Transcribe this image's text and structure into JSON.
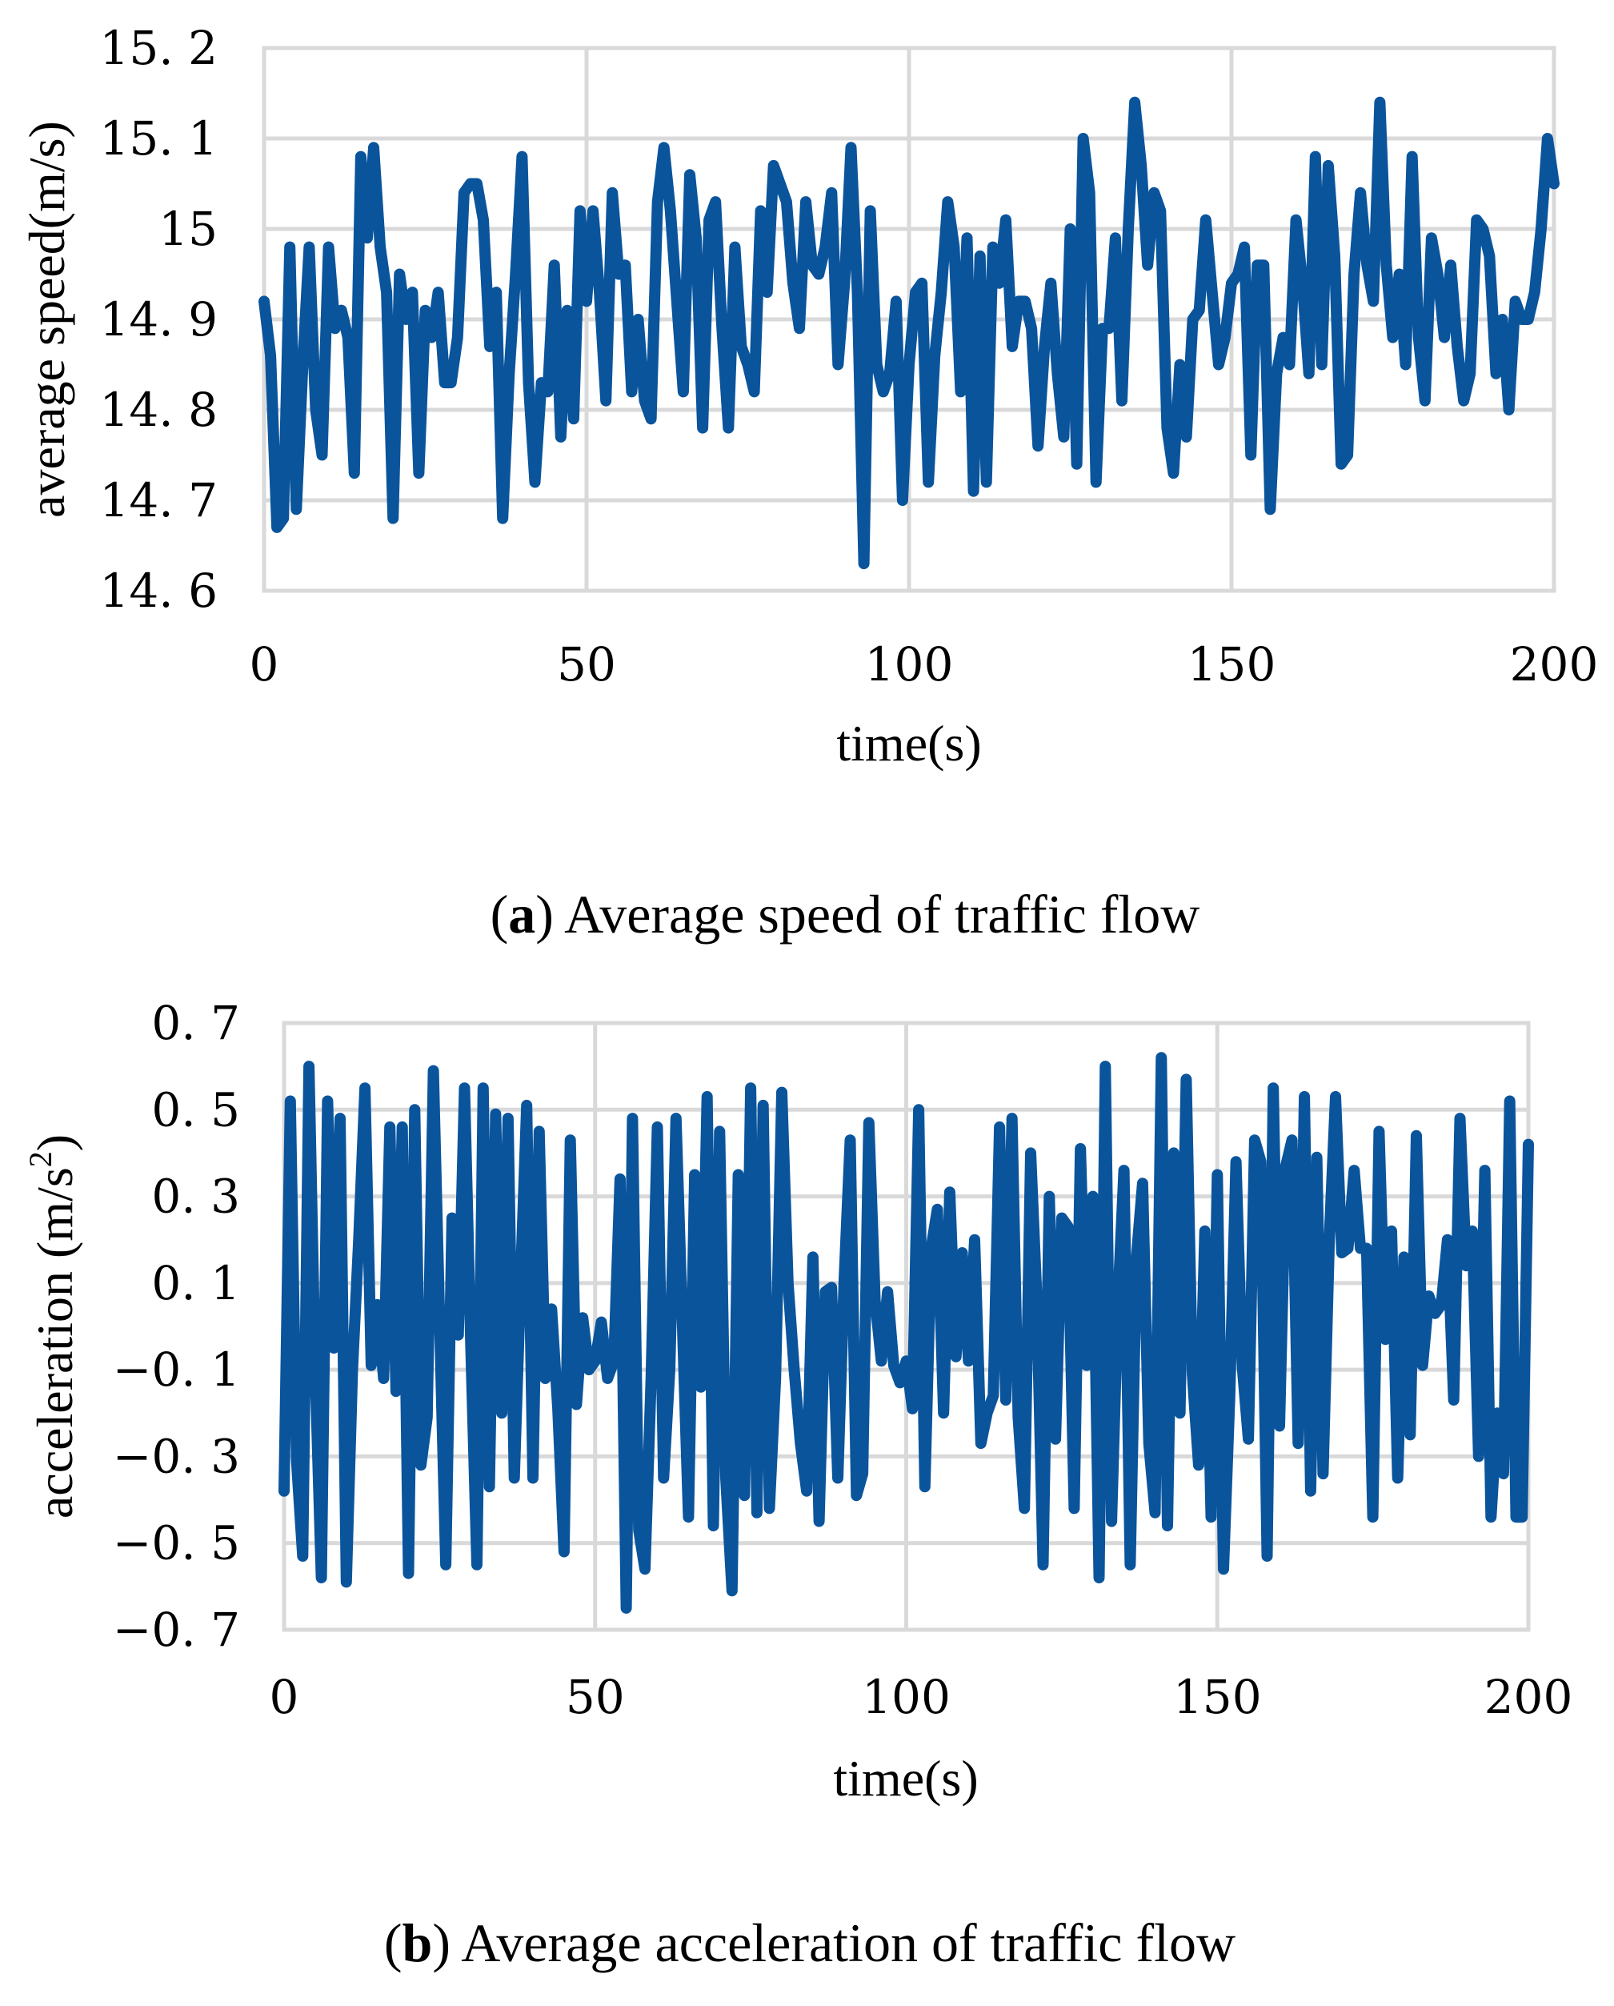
{
  "chart_data": [
    {
      "type": "line",
      "caption_letter": "a",
      "caption_open": "(",
      "caption_close": ")",
      "caption_text": " Average speed of traffic flow",
      "xlabel": "time(s)",
      "ylabel": "average speed(m/s)",
      "xlim": [
        0,
        200
      ],
      "ylim": [
        14.6,
        15.2
      ],
      "xticks": [
        0,
        50,
        100,
        150,
        200
      ],
      "xtick_labels": [
        "0",
        "50",
        "100",
        "150",
        "200"
      ],
      "yticks": [
        14.6,
        14.7,
        14.8,
        14.9,
        15.0,
        15.1,
        15.2
      ],
      "ytick_labels": [
        "14. 6",
        "14. 7",
        "14. 8",
        "14. 9",
        "15",
        "15. 1",
        "15. 2"
      ],
      "grid": true,
      "line_color": "#0a549c",
      "series": [
        {
          "x": [
            0,
            1,
            2,
            3,
            4,
            5,
            6,
            7,
            8,
            9,
            10,
            11,
            12,
            13,
            14,
            15,
            16,
            17,
            18,
            19,
            20,
            21,
            22,
            23,
            24,
            25,
            26,
            27,
            28,
            29,
            30,
            31,
            32,
            33,
            34,
            35,
            36,
            37,
            38,
            39,
            40,
            41,
            42,
            43,
            44,
            45,
            46,
            47,
            48,
            49,
            50,
            51,
            52,
            53,
            54,
            55,
            56,
            57,
            58,
            59,
            60,
            61,
            62,
            63,
            64,
            65,
            66,
            67,
            68,
            69,
            70,
            71,
            72,
            73,
            74,
            75,
            76,
            77,
            78,
            79,
            80,
            81,
            82,
            83,
            84,
            85,
            86,
            87,
            88,
            89,
            90,
            91,
            92,
            93,
            94,
            95,
            96,
            97,
            98,
            99,
            100,
            101,
            102,
            103,
            104,
            105,
            106,
            107,
            108,
            109,
            110,
            111,
            112,
            113,
            114,
            115,
            116,
            117,
            118,
            119,
            120,
            121,
            122,
            123,
            124,
            125,
            126,
            127,
            128,
            129,
            130,
            131,
            132,
            133,
            134,
            135,
            136,
            137,
            138,
            139,
            140,
            141,
            142,
            143,
            144,
            145,
            146,
            147,
            148,
            149,
            150,
            151,
            152,
            153,
            154,
            155,
            156,
            157,
            158,
            159,
            160,
            161,
            162,
            163,
            164,
            165,
            166,
            167,
            168,
            169,
            170,
            171,
            172,
            173,
            174,
            175,
            176,
            177,
            178,
            179,
            180,
            181,
            182,
            183,
            184,
            185,
            186,
            187,
            188,
            189,
            190,
            191,
            192,
            193,
            194,
            195,
            196,
            197,
            198,
            199,
            200
          ],
          "values": [
            14.92,
            14.86,
            14.67,
            14.68,
            14.98,
            14.69,
            14.85,
            14.98,
            14.8,
            14.75,
            14.98,
            14.89,
            14.91,
            14.88,
            14.73,
            15.08,
            14.99,
            15.09,
            14.98,
            14.93,
            14.68,
            14.95,
            14.9,
            14.93,
            14.73,
            14.91,
            14.88,
            14.93,
            14.83,
            14.83,
            14.88,
            15.04,
            15.05,
            15.05,
            15.01,
            14.87,
            14.93,
            14.68,
            14.84,
            14.95,
            15.08,
            14.83,
            14.72,
            14.83,
            14.82,
            14.96,
            14.77,
            14.91,
            14.79,
            15.02,
            14.92,
            15.02,
            14.93,
            14.81,
            15.04,
            14.95,
            14.96,
            14.82,
            14.9,
            14.81,
            14.79,
            15.03,
            15.09,
            15.02,
            14.92,
            14.82,
            15.06,
            14.99,
            14.78,
            15.01,
            15.03,
            14.89,
            14.78,
            14.98,
            14.87,
            14.85,
            14.82,
            15.02,
            14.93,
            15.07,
            15.05,
            15.03,
            14.94,
            14.89,
            15.03,
            14.96,
            14.95,
            14.98,
            15.04,
            14.85,
            14.94,
            15.09,
            14.93,
            14.63,
            15.02,
            14.85,
            14.82,
            14.84,
            14.92,
            14.7,
            14.85,
            14.93,
            14.94,
            14.72,
            14.86,
            14.93,
            15.03,
            14.98,
            14.82,
            14.99,
            14.71,
            14.97,
            14.72,
            14.98,
            14.94,
            15.01,
            14.87,
            14.92,
            14.92,
            14.89,
            14.76,
            14.87,
            14.94,
            14.84,
            14.77,
            15.0,
            14.74,
            15.1,
            15.04,
            14.72,
            14.89,
            14.89,
            14.99,
            14.81,
            15.0,
            15.14,
            15.07,
            14.96,
            15.04,
            15.02,
            14.78,
            14.73,
            14.85,
            14.77,
            14.9,
            14.91,
            15.01,
            14.93,
            14.85,
            14.88,
            14.94,
            14.95,
            14.98,
            14.75,
            14.96,
            14.96,
            14.69,
            14.84,
            14.88,
            14.85,
            15.01,
            14.94,
            14.84,
            15.08,
            14.85,
            15.07,
            14.97,
            14.74,
            14.75,
            14.95,
            15.04,
            14.96,
            14.92,
            15.14,
            14.96,
            14.88,
            14.95,
            14.85,
            15.08,
            14.88,
            14.81,
            14.99,
            14.95,
            14.88,
            14.96,
            14.87,
            14.81,
            14.84,
            15.01,
            15.0,
            14.97,
            14.84,
            14.9,
            14.8,
            14.92,
            14.9,
            14.9,
            14.93,
            15.0,
            15.1,
            15.05
          ]
        }
      ]
    },
    {
      "type": "line",
      "caption_letter": "b",
      "caption_open": "(",
      "caption_close": ")",
      "caption_text": " Average acceleration of traffic flow",
      "xlabel": "time(s)",
      "ylabel_main": "acceleration (m/s",
      "ylabel_sup": "2",
      "ylabel_end": ")",
      "xlim": [
        0,
        200
      ],
      "ylim": [
        -0.7,
        0.7
      ],
      "xticks": [
        0,
        50,
        100,
        150,
        200
      ],
      "xtick_labels": [
        "0",
        "50",
        "100",
        "150",
        "200"
      ],
      "yticks": [
        -0.7,
        -0.5,
        -0.3,
        -0.1,
        0.1,
        0.3,
        0.5,
        0.7
      ],
      "ytick_labels": [
        "−0. 7",
        "−0. 5",
        "−0. 3",
        "−0. 1",
        "0. 1",
        "0. 3",
        "0. 5",
        "0. 7"
      ],
      "grid": true,
      "line_color": "#0a549c",
      "series": [
        {
          "x": [
            0,
            1,
            2,
            3,
            4,
            5,
            6,
            7,
            8,
            9,
            10,
            11,
            12,
            13,
            14,
            15,
            16,
            17,
            18,
            19,
            20,
            21,
            22,
            23,
            24,
            25,
            26,
            27,
            28,
            29,
            30,
            31,
            32,
            33,
            34,
            35,
            36,
            37,
            38,
            39,
            40,
            41,
            42,
            43,
            44,
            45,
            46,
            47,
            48,
            49,
            50,
            51,
            52,
            53,
            54,
            55,
            56,
            57,
            58,
            59,
            60,
            61,
            62,
            63,
            64,
            65,
            66,
            67,
            68,
            69,
            70,
            71,
            72,
            73,
            74,
            75,
            76,
            77,
            78,
            79,
            80,
            81,
            82,
            83,
            84,
            85,
            86,
            87,
            88,
            89,
            90,
            91,
            92,
            93,
            94,
            95,
            96,
            97,
            98,
            99,
            100,
            101,
            102,
            103,
            104,
            105,
            106,
            107,
            108,
            109,
            110,
            111,
            112,
            113,
            114,
            115,
            116,
            117,
            118,
            119,
            120,
            121,
            122,
            123,
            124,
            125,
            126,
            127,
            128,
            129,
            130,
            131,
            132,
            133,
            134,
            135,
            136,
            137,
            138,
            139,
            140,
            141,
            142,
            143,
            144,
            145,
            146,
            147,
            148,
            149,
            150,
            151,
            152,
            153,
            154,
            155,
            156,
            157,
            158,
            159,
            160,
            161,
            162,
            163,
            164,
            165,
            166,
            167,
            168,
            169,
            170,
            171,
            172,
            173,
            174,
            175,
            176,
            177,
            178,
            179,
            180,
            181,
            182,
            183,
            184,
            185,
            186,
            187,
            188,
            189,
            190,
            191,
            192,
            193,
            194,
            195,
            196,
            197,
            198,
            199,
            200
          ],
          "values": [
            -0.38,
            0.52,
            -0.31,
            -0.53,
            0.6,
            -0.1,
            -0.58,
            0.52,
            -0.05,
            0.48,
            -0.59,
            -0.1,
            0.2,
            0.55,
            -0.09,
            0.05,
            -0.12,
            0.46,
            -0.15,
            0.46,
            -0.57,
            0.5,
            -0.32,
            -0.21,
            0.59,
            0.01,
            -0.55,
            0.25,
            -0.02,
            0.55,
            -0.04,
            -0.55,
            0.55,
            -0.37,
            0.49,
            -0.2,
            0.48,
            -0.35,
            0.1,
            0.51,
            -0.35,
            0.45,
            -0.12,
            0.04,
            -0.19,
            -0.52,
            0.43,
            -0.18,
            0.02,
            -0.1,
            -0.08,
            0.01,
            -0.12,
            -0.08,
            0.34,
            -0.65,
            0.48,
            -0.47,
            -0.56,
            -0.12,
            0.46,
            -0.35,
            -0.1,
            0.48,
            0.02,
            -0.44,
            0.35,
            -0.14,
            0.53,
            -0.46,
            0.45,
            -0.35,
            -0.61,
            0.35,
            -0.39,
            0.55,
            -0.43,
            0.51,
            -0.42,
            -0.12,
            0.54,
            0.1,
            -0.1,
            -0.27,
            -0.38,
            0.16,
            -0.45,
            0.08,
            0.09,
            -0.35,
            0.1,
            0.43,
            -0.39,
            -0.34,
            0.47,
            0.06,
            -0.08,
            0.08,
            -0.09,
            -0.13,
            -0.08,
            -0.19,
            0.5,
            -0.37,
            0.18,
            0.27,
            -0.2,
            0.31,
            -0.07,
            0.17,
            -0.08,
            0.2,
            -0.27,
            -0.2,
            -0.16,
            0.46,
            -0.17,
            0.48,
            -0.21,
            -0.42,
            0.4,
            0.06,
            -0.55,
            0.3,
            -0.26,
            0.25,
            0.23,
            -0.42,
            0.41,
            -0.09,
            0.3,
            -0.58,
            0.6,
            -0.45,
            0.05,
            0.36,
            -0.55,
            0.16,
            0.33,
            -0.27,
            -0.43,
            0.62,
            -0.46,
            0.4,
            -0.2,
            0.57,
            -0.11,
            -0.32,
            0.22,
            -0.44,
            0.35,
            -0.56,
            -0.16,
            0.38,
            -0.09,
            -0.26,
            0.43,
            0.38,
            -0.53,
            0.55,
            -0.23,
            0.37,
            0.43,
            -0.27,
            0.53,
            -0.38,
            0.39,
            -0.34,
            0.2,
            0.53,
            0.17,
            0.18,
            0.36,
            0.18,
            0.18,
            -0.44,
            0.45,
            -0.03,
            0.22,
            -0.35,
            0.16,
            -0.25,
            0.44,
            -0.09,
            0.07,
            0.03,
            0.05,
            0.2,
            -0.17,
            0.48,
            0.14,
            0.22,
            -0.3,
            0.36,
            -0.44,
            -0.2,
            -0.34,
            0.52,
            -0.44,
            -0.44,
            0.42
          ]
        }
      ]
    }
  ]
}
